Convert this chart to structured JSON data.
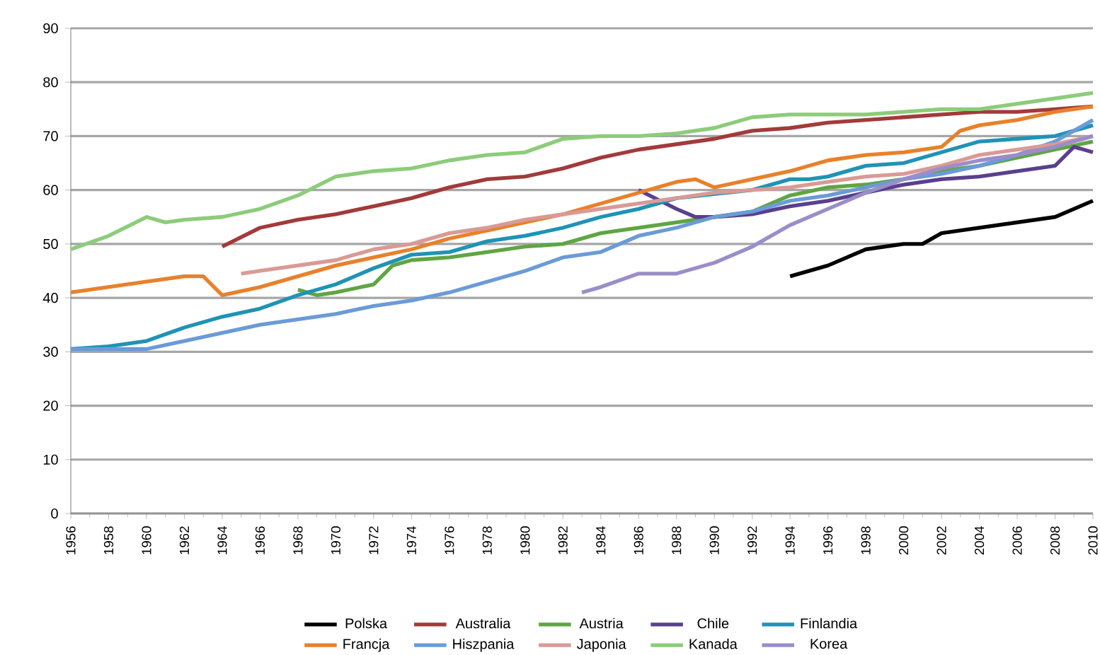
{
  "chart_data": {
    "type": "line",
    "xlim": [
      1956,
      2010
    ],
    "ylim": [
      0,
      90
    ],
    "xticks": [
      1956,
      1958,
      1960,
      1962,
      1964,
      1966,
      1968,
      1970,
      1972,
      1974,
      1976,
      1978,
      1980,
      1982,
      1984,
      1986,
      1988,
      1990,
      1992,
      1994,
      1996,
      1998,
      2000,
      2002,
      2004,
      2006,
      2008,
      2010
    ],
    "yticks": [
      0,
      10,
      20,
      30,
      40,
      50,
      60,
      70,
      80,
      90
    ],
    "grid": "y",
    "legend": "bottom",
    "marker": "none",
    "line_style": "solid",
    "series": [
      {
        "name": "Polska",
        "color": "#000000",
        "x": [
          1994,
          1996,
          1998,
          2000,
          2001,
          2002,
          2004,
          2006,
          2008,
          2010
        ],
        "values": [
          44,
          46,
          49,
          50,
          50,
          52,
          53,
          54,
          55,
          58
        ]
      },
      {
        "name": "Australia",
        "color": "#a33a3a",
        "x": [
          1964,
          1966,
          1968,
          1970,
          1972,
          1974,
          1976,
          1978,
          1980,
          1982,
          1984,
          1986,
          1988,
          1990,
          1992,
          1994,
          1996,
          1998,
          2000,
          2002,
          2004,
          2006,
          2008,
          2010
        ],
        "values": [
          49.5,
          53,
          54.5,
          55.5,
          57,
          58.5,
          60.5,
          62,
          62.5,
          64,
          66,
          67.5,
          68.5,
          69.5,
          71,
          71.5,
          72.5,
          73,
          73.5,
          74,
          74.5,
          74.5,
          75,
          75.5
        ]
      },
      {
        "name": "Austria",
        "color": "#5fa544",
        "x": [
          1968,
          1969,
          1970,
          1972,
          1973,
          1974,
          1976,
          1978,
          1980,
          1982,
          1984,
          1986,
          1988,
          1990,
          1992,
          1994,
          1996,
          1998,
          2000,
          2002,
          2004,
          2006,
          2008,
          2010
        ],
        "values": [
          41.5,
          40.5,
          41,
          42.5,
          46,
          47,
          47.5,
          48.5,
          49.5,
          50,
          52,
          53,
          54,
          55,
          56,
          59,
          60.5,
          61,
          62,
          63.5,
          64.5,
          66,
          67.5,
          69
        ]
      },
      {
        "name": "Chile",
        "color": "#5a3f8f",
        "x": [
          1986,
          1988,
          1989,
          1990,
          1992,
          1994,
          1996,
          1998,
          2000,
          2002,
          2004,
          2006,
          2008,
          2009,
          2010
        ],
        "values": [
          60,
          56.5,
          55,
          55,
          55.5,
          57,
          58,
          59.5,
          61,
          62,
          62.5,
          63.5,
          64.5,
          68,
          67
        ]
      },
      {
        "name": "Finlandia",
        "color": "#1f93b5",
        "x": [
          1956,
          1958,
          1960,
          1962,
          1964,
          1966,
          1968,
          1970,
          1972,
          1974,
          1976,
          1978,
          1980,
          1982,
          1984,
          1986,
          1988,
          1992,
          1994,
          1995,
          1996,
          1998,
          2000,
          2002,
          2004,
          2006,
          2008,
          2010
        ],
        "values": [
          30.5,
          31,
          32,
          34.5,
          36.5,
          38,
          40.5,
          42.5,
          45.5,
          48,
          48.5,
          50.5,
          51.5,
          53,
          55,
          56.5,
          58.5,
          60,
          62,
          62,
          62.5,
          64.5,
          65,
          67,
          69,
          69.5,
          70,
          72
        ]
      },
      {
        "name": "Francja",
        "color": "#e8812b",
        "x": [
          1956,
          1958,
          1960,
          1962,
          1963,
          1964,
          1966,
          1968,
          1970,
          1972,
          1974,
          1976,
          1978,
          1980,
          1982,
          1984,
          1986,
          1988,
          1989,
          1990,
          1992,
          1994,
          1996,
          1998,
          2000,
          2002,
          2003,
          2004,
          2006,
          2008,
          2010
        ],
        "values": [
          41,
          42,
          43,
          44,
          44,
          40.5,
          42,
          44,
          46,
          47.5,
          49,
          51,
          52.5,
          54,
          55.5,
          57.5,
          59.5,
          61.5,
          62,
          60.5,
          62,
          63.5,
          65.5,
          66.5,
          67,
          68,
          71,
          72,
          73,
          74.5,
          75.5
        ]
      },
      {
        "name": "Hiszpania",
        "color": "#6a9bd8",
        "x": [
          1956,
          1958,
          1960,
          1962,
          1964,
          1966,
          1968,
          1970,
          1972,
          1974,
          1976,
          1978,
          1980,
          1982,
          1984,
          1986,
          1988,
          1990,
          1992,
          1994,
          1996,
          1998,
          2000,
          2002,
          2004,
          2006,
          2008,
          2010
        ],
        "values": [
          30.5,
          30.5,
          30.5,
          32,
          33.5,
          35,
          36,
          37,
          38.5,
          39.5,
          41,
          43,
          45,
          47.5,
          48.5,
          51.5,
          53,
          55,
          56,
          58,
          59,
          60.5,
          62,
          63,
          64.5,
          66.5,
          69,
          73
        ]
      },
      {
        "name": "Japonia",
        "color": "#d99a96",
        "x": [
          1965,
          1966,
          1968,
          1970,
          1972,
          1974,
          1976,
          1978,
          1980,
          1982,
          1984,
          1986,
          1988,
          1990,
          1992,
          1994,
          1996,
          1998,
          2000,
          2002,
          2004,
          2006,
          2008,
          2010
        ],
        "values": [
          44.5,
          45,
          46,
          47,
          49,
          50,
          52,
          53,
          54.5,
          55.5,
          56.5,
          57.5,
          58.5,
          59.5,
          60,
          60.5,
          61.5,
          62.5,
          63,
          64.5,
          66.5,
          67.5,
          68.5,
          70
        ]
      },
      {
        "name": "Kanada",
        "color": "#8ccc7a",
        "x": [
          1956,
          1958,
          1960,
          1961,
          1962,
          1964,
          1966,
          1968,
          1970,
          1972,
          1974,
          1976,
          1978,
          1980,
          1982,
          1984,
          1986,
          1988,
          1990,
          1992,
          1994,
          1996,
          1998,
          2000,
          2002,
          2004,
          2006,
          2008,
          2010
        ],
        "values": [
          49,
          51.5,
          55,
          54,
          54.5,
          55,
          56.5,
          59,
          62.5,
          63.5,
          64,
          65.5,
          66.5,
          67,
          69.5,
          70,
          70,
          70.5,
          71.5,
          73.5,
          74,
          74,
          74,
          74.5,
          75,
          75,
          76,
          77,
          78
        ]
      },
      {
        "name": "Korea",
        "color": "#9b8dc9",
        "x": [
          1983,
          1984,
          1986,
          1988,
          1990,
          1992,
          1994,
          1996,
          1998,
          2000,
          2002,
          2004,
          2006,
          2008,
          2010
        ],
        "values": [
          41,
          42,
          44.5,
          44.5,
          46.5,
          49.5,
          53.5,
          56.5,
          59.5,
          62,
          64,
          65.5,
          66.5,
          68,
          70
        ]
      }
    ]
  }
}
